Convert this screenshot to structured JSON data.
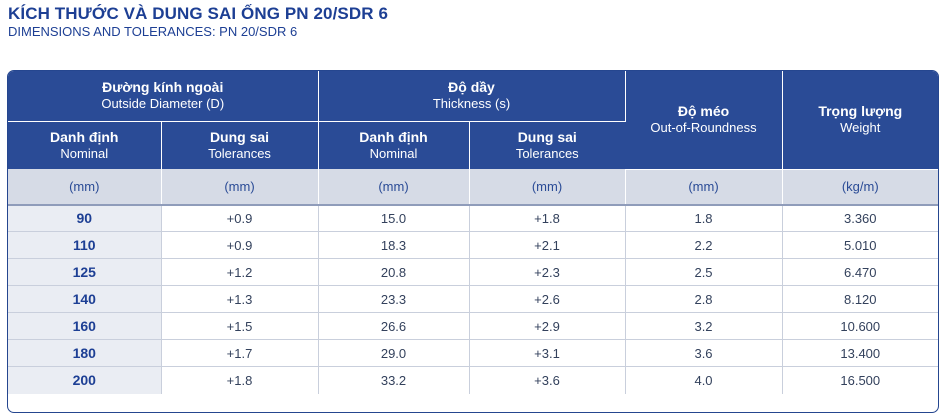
{
  "title": "KÍCH THƯỚC VÀ DUNG SAI ỐNG PN 20/SDR 6",
  "subtitle": "DIMENSIONS AND TOLERANCES: PN 20/SDR 6",
  "header": {
    "outside_diameter": {
      "vi": "Đường kính ngoài",
      "en": "Outside Diameter (D)"
    },
    "thickness": {
      "vi": "Độ dầy",
      "en": "Thickness (s)"
    },
    "out_of_roundness": {
      "vi": "Độ méo",
      "en": "Out-of-Roundness"
    },
    "weight": {
      "vi": "Trọng lượng",
      "en": "Weight"
    },
    "nominal": {
      "vi": "Danh định",
      "en": "Nominal"
    },
    "tolerances": {
      "vi": "Dung sai",
      "en": "Tolerances"
    }
  },
  "units": [
    "(mm)",
    "(mm)",
    "(mm)",
    "(mm)",
    "(mm)",
    "(kg/m)"
  ],
  "rows": [
    [
      "90",
      "+0.9",
      "15.0",
      "+1.8",
      "1.8",
      "3.360"
    ],
    [
      "110",
      "+0.9",
      "18.3",
      "+2.1",
      "2.2",
      "5.010"
    ],
    [
      "125",
      "+1.2",
      "20.8",
      "+2.3",
      "2.5",
      "6.470"
    ],
    [
      "140",
      "+1.3",
      "23.3",
      "+2.6",
      "2.8",
      "8.120"
    ],
    [
      "160",
      "+1.5",
      "26.6",
      "+2.9",
      "3.2",
      "10.600"
    ],
    [
      "180",
      "+1.7",
      "29.0",
      "+3.1",
      "3.6",
      "13.400"
    ],
    [
      "200",
      "+1.8",
      "33.2",
      "+3.6",
      "4.0",
      "16.500"
    ]
  ]
}
